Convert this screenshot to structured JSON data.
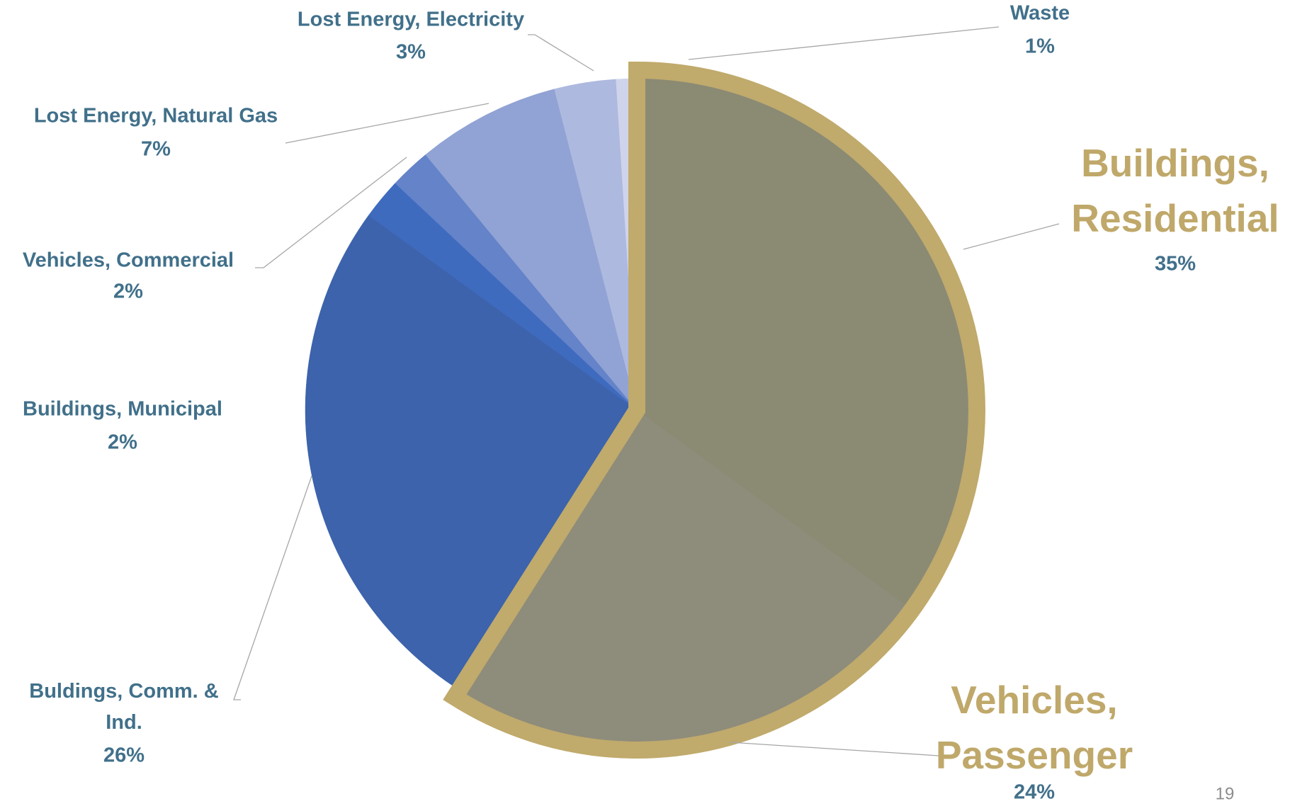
{
  "chart_data": {
    "type": "pie",
    "categories": [
      "Buildings, Residential",
      "Vehicles, Passenger",
      "Buldings, Comm. & Ind.",
      "Buildings, Municipal",
      "Vehicles, Commercial",
      "Lost Energy, Natural Gas",
      "Lost Energy, Electricity",
      "Waste"
    ],
    "values": [
      35,
      24,
      26,
      2,
      2,
      7,
      3,
      1
    ],
    "value_labels": [
      "35%",
      "24%",
      "26%",
      "2%",
      "2%",
      "7%",
      "3%",
      "1%"
    ],
    "colors": [
      "#8b8a73",
      "#8e8c7a",
      "#3c63ab",
      "#3f6bbf",
      "#6483c9",
      "#91a3d4",
      "#aeb9df",
      "#cfd4eb"
    ],
    "highlighted": [
      "Buildings, Residential",
      "Vehicles, Passenger"
    ],
    "highlight_color": "#c0aa6c"
  },
  "page_number": "19"
}
